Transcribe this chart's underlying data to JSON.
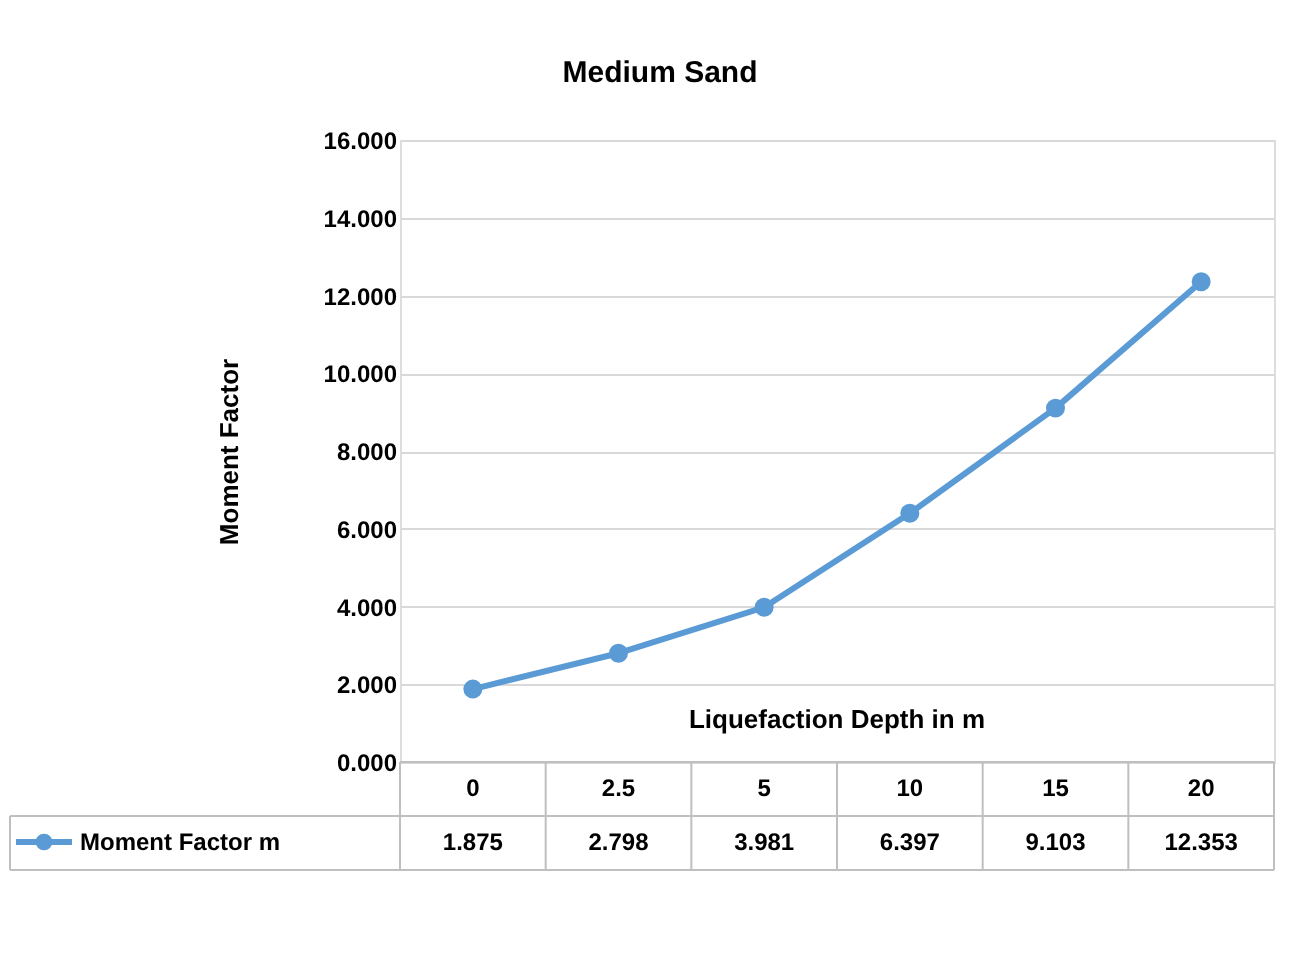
{
  "chart_data": {
    "type": "line",
    "title": "Medium Sand",
    "xlabel": "Liquefaction Depth in m",
    "ylabel": "Moment Factor",
    "categories": [
      "0",
      "2.5",
      "5",
      "10",
      "15",
      "20"
    ],
    "series": [
      {
        "name": "Moment Factor m",
        "color": "#5b9bd5",
        "values": [
          1.875,
          2.798,
          3.981,
          6.397,
          9.103,
          12.353
        ]
      }
    ],
    "ylim": [
      0,
      16
    ],
    "yticks": [
      {
        "value": 0,
        "label": "0.000"
      },
      {
        "value": 2,
        "label": "2.000"
      },
      {
        "value": 4,
        "label": "4.000"
      },
      {
        "value": 6,
        "label": "6.000"
      },
      {
        "value": 8,
        "label": "8.000"
      },
      {
        "value": 10,
        "label": "10.000"
      },
      {
        "value": 12,
        "label": "12.000"
      },
      {
        "value": 14,
        "label": "14.000"
      },
      {
        "value": 16,
        "label": "16.000"
      }
    ],
    "grid": "y",
    "marker": "circle",
    "line_style": "solid",
    "data_labels": true
  }
}
